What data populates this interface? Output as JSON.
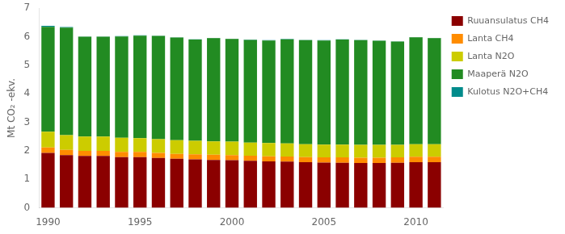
{
  "chart_data": {
    "type": "bar",
    "stacked": true,
    "categories": [
      "1990",
      null,
      null,
      null,
      null,
      "1995",
      null,
      null,
      null,
      null,
      "2000",
      null,
      null,
      null,
      null,
      "2005",
      null,
      null,
      null,
      null,
      "2010",
      null
    ],
    "series": [
      {
        "name": "Ruuansulatus CH4",
        "color": "#8B0000",
        "values": [
          1.93,
          1.85,
          1.82,
          1.82,
          1.78,
          1.78,
          1.75,
          1.72,
          1.7,
          1.68,
          1.67,
          1.65,
          1.63,
          1.62,
          1.6,
          1.59,
          1.58,
          1.57,
          1.57,
          1.58,
          1.6,
          1.6
        ]
      },
      {
        "name": "Lanta CH4",
        "color": "#FF8C00",
        "values": [
          0.19,
          0.18,
          0.18,
          0.18,
          0.18,
          0.18,
          0.18,
          0.17,
          0.18,
          0.18,
          0.18,
          0.18,
          0.18,
          0.18,
          0.18,
          0.18,
          0.19,
          0.19,
          0.19,
          0.19,
          0.19,
          0.19
        ]
      },
      {
        "name": "Lanta N2O",
        "color": "#CCCC00",
        "values": [
          0.55,
          0.52,
          0.5,
          0.5,
          0.5,
          0.48,
          0.48,
          0.48,
          0.47,
          0.47,
          0.47,
          0.46,
          0.46,
          0.46,
          0.45,
          0.45,
          0.45,
          0.45,
          0.45,
          0.44,
          0.44,
          0.44
        ]
      },
      {
        "name": "Maaperä N2O",
        "color": "#228B22",
        "values": [
          3.68,
          3.77,
          3.5,
          3.5,
          3.55,
          3.6,
          3.62,
          3.6,
          3.55,
          3.62,
          3.6,
          3.6,
          3.6,
          3.65,
          3.65,
          3.65,
          3.68,
          3.67,
          3.65,
          3.62,
          3.75,
          3.72
        ]
      },
      {
        "name": "Kulotus N2O+CH4",
        "color": "#008B8B",
        "values": [
          0.03,
          0.02,
          0.01,
          0.01,
          0.01,
          0.01,
          0.01,
          0.01,
          0.01,
          0.01,
          0.01,
          0.01,
          0.01,
          0.01,
          0.01,
          0.01,
          0.01,
          0.01,
          0.01,
          0.01,
          0.01,
          0.01
        ]
      }
    ],
    "ylabel": "Mt CO₂ -ekv.",
    "ylim": [
      0,
      7
    ],
    "yticks": [
      0,
      1,
      2,
      3,
      4,
      5,
      6,
      7
    ],
    "grid": false,
    "legend": "right"
  }
}
